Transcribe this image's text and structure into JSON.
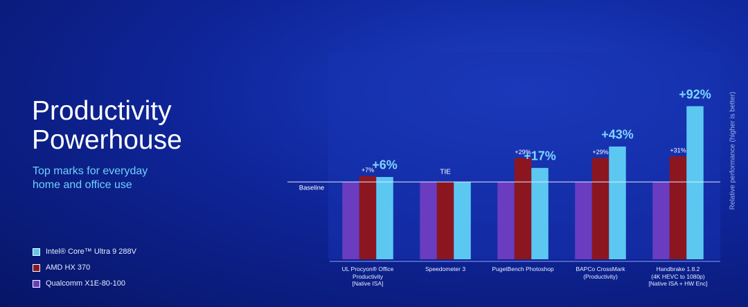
{
  "chart_data": {
    "type": "bar",
    "title": "Productivity\nPowerhouse",
    "subtitle": "Top marks for everyday\nhome and office use",
    "y_axis_label": "Relative performance (higher is better)",
    "annotations": {
      "baseline": "Baseline",
      "tie": "TIE"
    },
    "categories": [
      "UL Procyon® Office\nProductivity\n[Native ISA]",
      "Speedometer 3",
      "PugetBench Photoshop",
      "BAPCo CrossMark\n(Productivity)",
      "Handbrake 1.8.2\n(4K HEVC to 1080p)\n[Native ISA + HW Enc]"
    ],
    "series": [
      {
        "name": "Qualcomm X1E-80-100",
        "color": "#6a3cc0",
        "values": [
          0,
          0,
          0,
          0,
          0
        ]
      },
      {
        "name": "AMD HX 370",
        "color": "#8c1620",
        "values": [
          7,
          0,
          29,
          29,
          31
        ],
        "value_labels": [
          "+7%",
          null,
          "+29%",
          "+29%",
          "+31%"
        ]
      },
      {
        "name": "Intel® Core™ Ultra 9 288V",
        "color": "#5cc8f2",
        "values": [
          6,
          0,
          17,
          43,
          92
        ],
        "value_labels": [
          "+6%",
          null,
          "+17%",
          "+43%",
          "+92%"
        ]
      }
    ],
    "ylim": [
      -94,
      158
    ]
  }
}
